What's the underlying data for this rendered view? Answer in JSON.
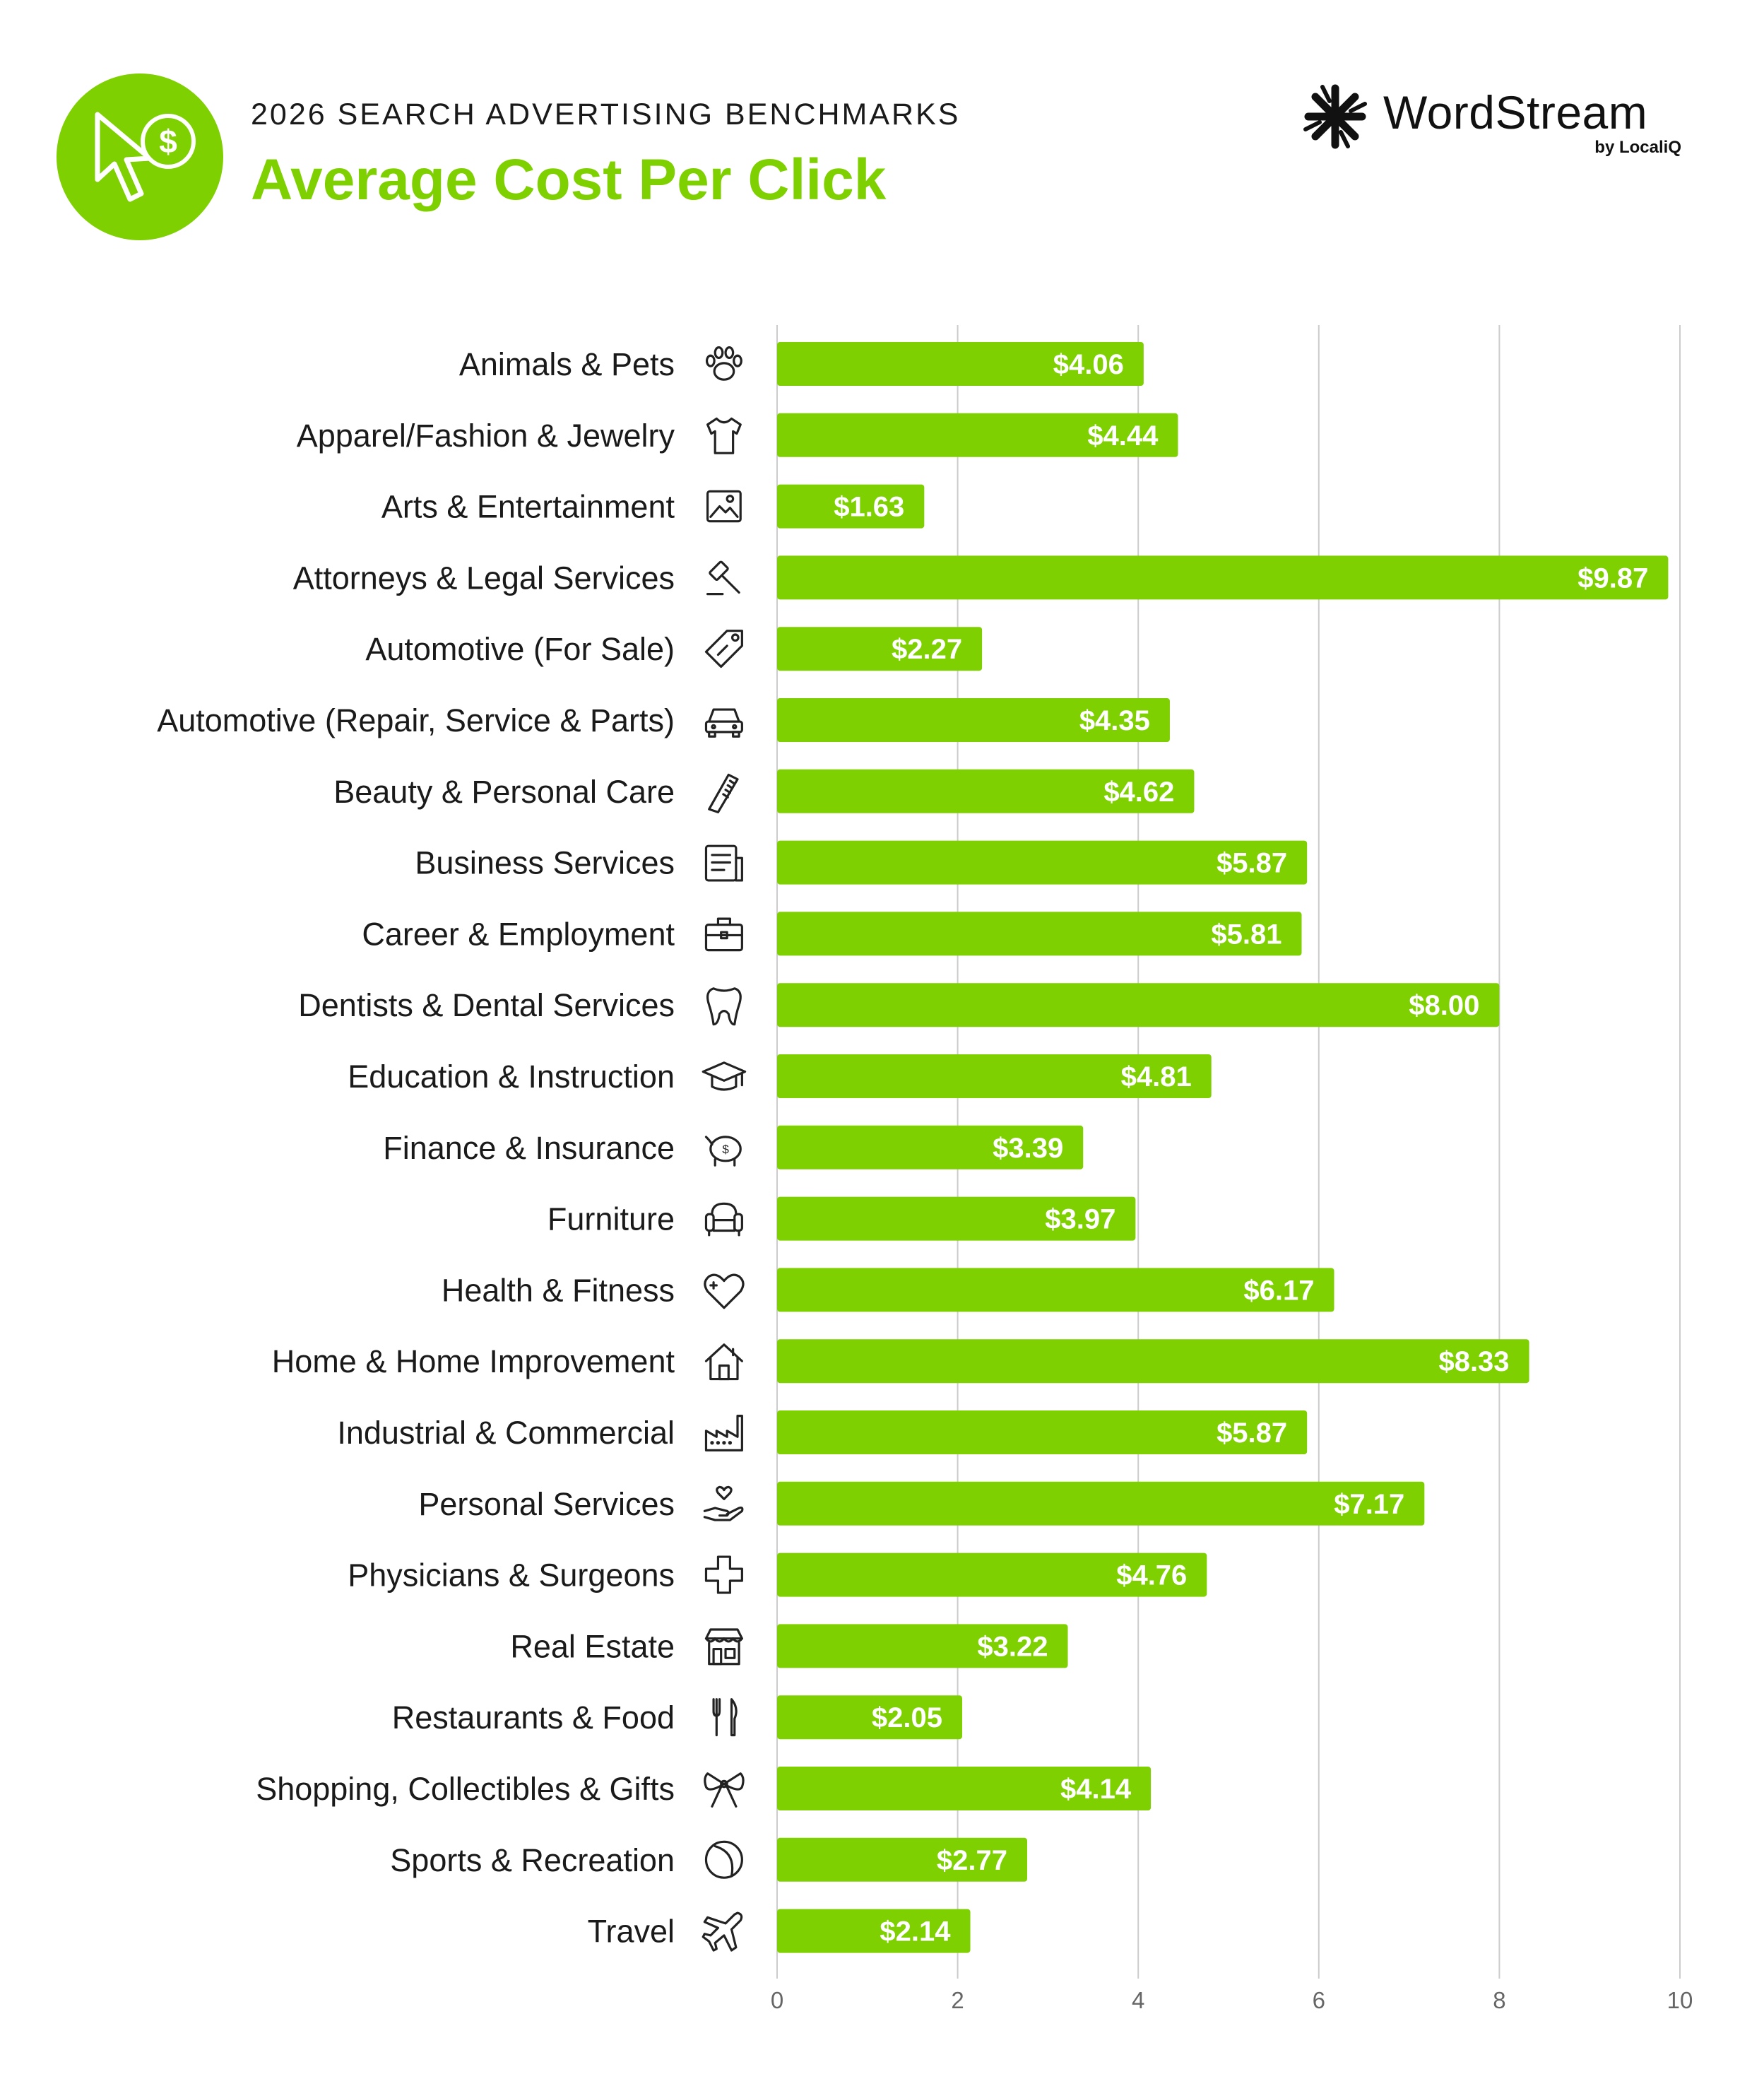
{
  "header": {
    "kicker": "2026 SEARCH ADVERTISING BENCHMARKS",
    "title": "Average Cost Per Click",
    "badge_icon": "cursor-dollar-icon"
  },
  "brand": {
    "name": "WordStream",
    "sub": "by LocaliQ",
    "logo_icon": "wordstream-logo-icon"
  },
  "colors": {
    "accent": "#7ed000",
    "bar": "#7ed000",
    "grid": "#cccccc",
    "text": "#1a1a1a"
  },
  "chart_data": {
    "type": "bar",
    "orientation": "horizontal",
    "categories": [
      "Animals & Pets",
      "Apparel/Fashion & Jewelry",
      "Arts & Entertainment",
      "Attorneys & Legal Services",
      "Automotive (For Sale)",
      "Automotive (Repair, Service & Parts)",
      "Beauty & Personal Care",
      "Business Services",
      "Career & Employment",
      "Dentists & Dental Services",
      "Education & Instruction",
      "Finance & Insurance",
      "Furniture",
      "Health & Fitness",
      "Home & Home Improvement",
      "Industrial & Commercial",
      "Personal Services",
      "Physicians & Surgeons",
      "Real Estate",
      "Restaurants & Food",
      "Shopping, Collectibles & Gifts",
      "Sports & Recreation",
      "Travel"
    ],
    "icons": [
      "paw-icon",
      "shirt-icon",
      "picture-icon",
      "gavel-icon",
      "price-tag-icon",
      "car-icon",
      "comb-icon",
      "document-icon",
      "briefcase-icon",
      "tooth-icon",
      "graduation-cap-icon",
      "piggy-bank-icon",
      "armchair-icon",
      "heart-plus-icon",
      "house-icon",
      "factory-icon",
      "hand-heart-icon",
      "medical-cross-icon",
      "storefront-icon",
      "fork-knife-icon",
      "gift-bow-icon",
      "ball-icon",
      "airplane-icon"
    ],
    "values": [
      4.06,
      4.44,
      1.63,
      9.87,
      2.27,
      4.35,
      4.62,
      5.87,
      5.81,
      8.0,
      4.81,
      3.39,
      3.97,
      6.17,
      8.33,
      5.87,
      7.17,
      4.76,
      3.22,
      2.05,
      4.14,
      2.77,
      2.14
    ],
    "value_labels": [
      "$4.06",
      "$4.44",
      "$1.63",
      "$9.87",
      "$2.27",
      "$4.35",
      "$4.62",
      "$5.87",
      "$5.81",
      "$8.00",
      "$4.81",
      "$3.39",
      "$3.97",
      "$6.17",
      "$8.33",
      "$5.87",
      "$7.17",
      "$4.76",
      "$3.22",
      "$2.05",
      "$4.14",
      "$2.77",
      "$2.14"
    ],
    "xlim": [
      0,
      10
    ],
    "xticks": [
      "0",
      "2",
      "4",
      "6",
      "8",
      "10"
    ],
    "grid": true,
    "legend": "none"
  }
}
